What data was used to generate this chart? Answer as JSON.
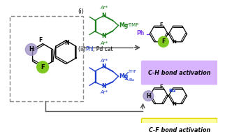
{
  "bg_color": "#ffffff",
  "ch_label": "C-H bond activation",
  "cf_label": "C-F bond activation",
  "ch_box_color": "#d8b4fe",
  "cf_box_color_edge": "#e6d700",
  "cf_box_color_face": "#feffa0",
  "green_circle_color": "#7ec820",
  "purple_circle_color": "#9b8ec4",
  "reagent1_color": "#1a7c1a",
  "reagent2_color": "#1a3acc",
  "ph_color": "#7c3aed",
  "bu_color": "#1a3acc",
  "arrow_color": "#555555",
  "box_dash_color": "#888888",
  "ar_star": "Ar*",
  "n_text": "N",
  "f_text": "F",
  "h_text": "H",
  "ph_text": "Ph",
  "bu_text": "Bu",
  "n_py": "N"
}
